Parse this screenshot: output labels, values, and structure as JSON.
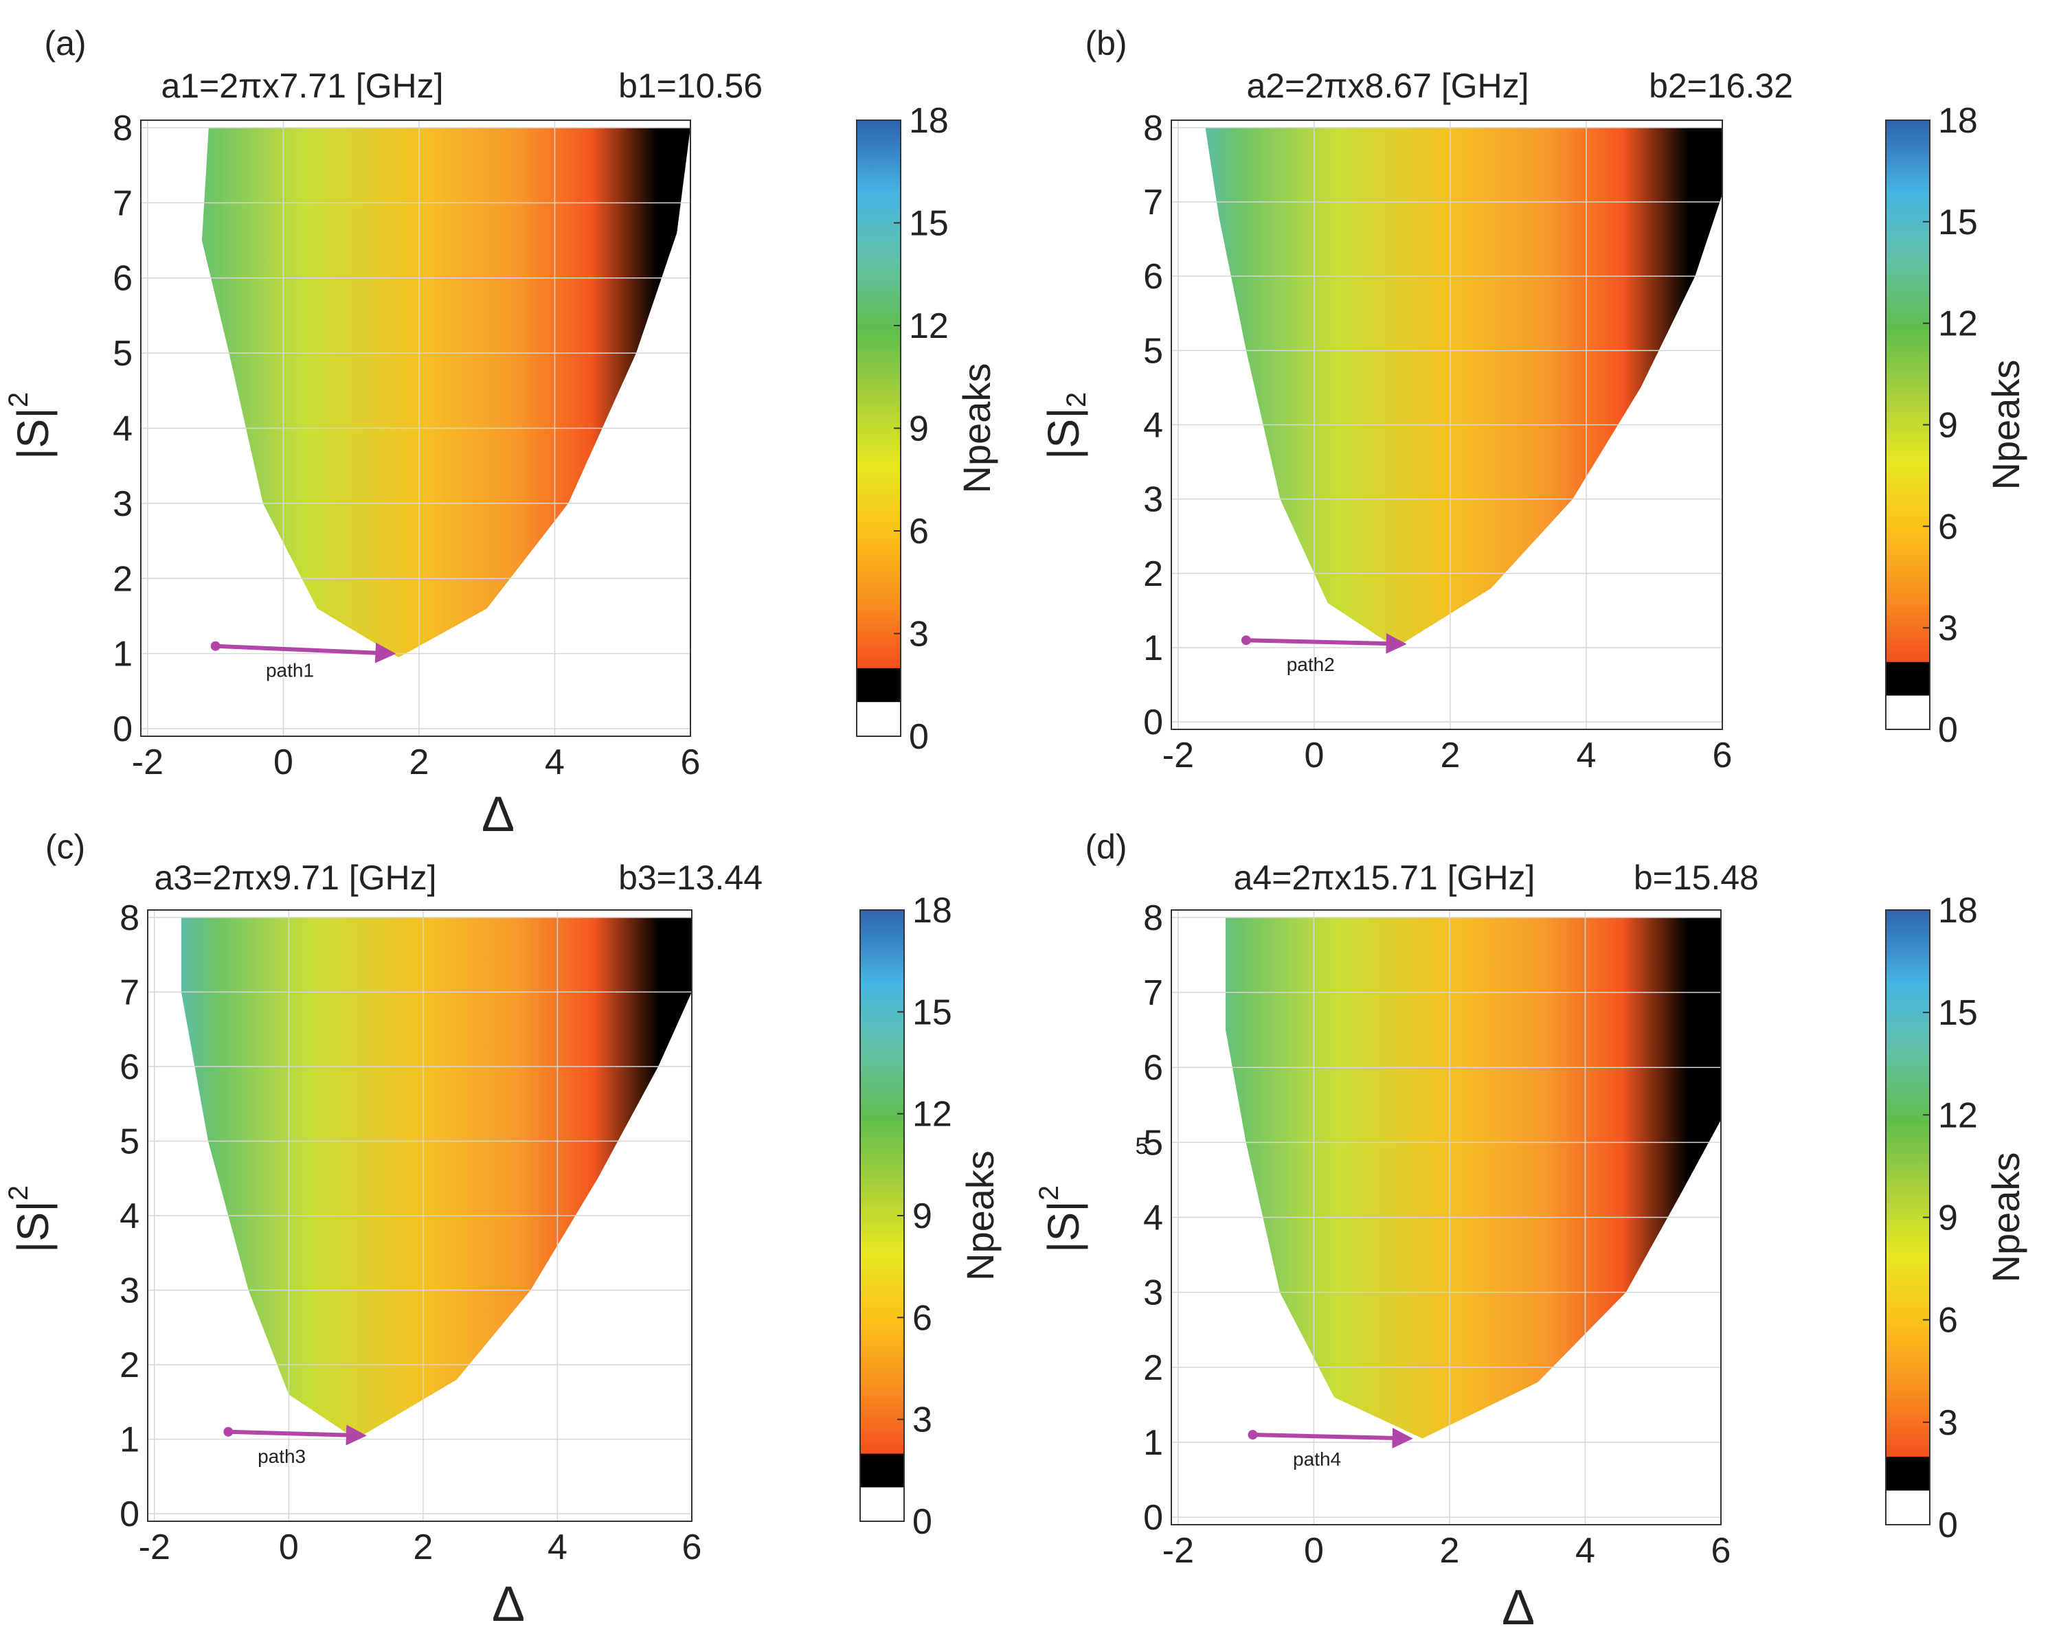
{
  "chart_data": [
    {
      "type": "heatmap",
      "panel_label": "(a)",
      "title_left": "a1=2πx7.71 [GHz]",
      "title_right": "b1=10.56",
      "xlabel": "Δ",
      "ylabel": "|S|",
      "ylabel_sup": "2",
      "ylabel_sub": "",
      "xlim": [
        -2.1,
        6.0
      ],
      "ylim": [
        -0.1,
        8.1
      ],
      "xticks": [
        -2,
        0,
        2,
        4,
        6
      ],
      "xtick_labels": [
        "-2",
        "0",
        "2",
        "4",
        "6"
      ],
      "yticks": [
        0,
        1,
        2,
        3,
        4,
        5,
        6,
        7,
        8
      ],
      "ytick_labels": [
        "0",
        "1",
        "2",
        "3",
        "4",
        "5",
        "6",
        "7",
        "8"
      ],
      "grid": true,
      "colorbar": {
        "label": "Npeaks",
        "range": [
          0,
          18
        ],
        "ticks": [
          0,
          3,
          6,
          9,
          12,
          15,
          18
        ],
        "tick_labels": [
          "0",
          "3",
          "6",
          "9",
          "12",
          "15",
          "18"
        ]
      },
      "region": {
        "vertex": [
          1.7,
          0.95
        ],
        "left_branch": [
          [
            1.7,
            0.95
          ],
          [
            0.5,
            1.6
          ],
          [
            -0.3,
            3.0
          ],
          [
            -0.8,
            5.0
          ],
          [
            -1.2,
            6.5
          ],
          [
            -1.1,
            8.0
          ]
        ],
        "right_branch": [
          [
            1.7,
            0.95
          ],
          [
            3.0,
            1.6
          ],
          [
            4.2,
            3.0
          ],
          [
            5.2,
            5.0
          ],
          [
            5.8,
            6.6
          ],
          [
            6.0,
            8.0
          ]
        ]
      },
      "path": {
        "label": "path1",
        "from": [
          -1.0,
          1.1
        ],
        "to": [
          1.6,
          1.0
        ]
      }
    },
    {
      "type": "heatmap",
      "panel_label": "(b)",
      "title_left": "a2=2πx8.67 [GHz]",
      "title_right": "b2=16.32",
      "xlabel": "",
      "ylabel": "|S|",
      "ylabel_sup": "",
      "ylabel_sub": "2",
      "xlim": [
        -2.1,
        6.0
      ],
      "ylim": [
        -0.1,
        8.1
      ],
      "xticks": [
        -2,
        0,
        2,
        4,
        6
      ],
      "xtick_labels": [
        "-2",
        "0",
        "2",
        "4",
        "6"
      ],
      "yticks": [
        0,
        1,
        2,
        3,
        4,
        5,
        6,
        7,
        8
      ],
      "ytick_labels": [
        "0",
        "1",
        "2",
        "3",
        "4",
        "5",
        "6",
        "7",
        "8"
      ],
      "grid": true,
      "colorbar": {
        "label": "Npeaks",
        "range": [
          0,
          18
        ],
        "ticks": [
          0,
          3,
          6,
          9,
          12,
          15,
          18
        ],
        "tick_labels": [
          "0",
          "3",
          "6",
          "9",
          "12",
          "15",
          "18"
        ]
      },
      "region": {
        "vertex": [
          1.2,
          1.0
        ],
        "left_branch": [
          [
            1.2,
            1.0
          ],
          [
            0.2,
            1.6
          ],
          [
            -0.5,
            3.0
          ],
          [
            -1.0,
            5.0
          ],
          [
            -1.4,
            6.8
          ],
          [
            -1.6,
            8.0
          ]
        ],
        "right_branch": [
          [
            1.2,
            1.0
          ],
          [
            2.6,
            1.8
          ],
          [
            3.8,
            3.0
          ],
          [
            4.8,
            4.5
          ],
          [
            5.6,
            6.0
          ],
          [
            6.0,
            7.1
          ],
          [
            6.0,
            8.0
          ]
        ]
      },
      "path": {
        "label": "path2",
        "from": [
          -1.0,
          1.1
        ],
        "to": [
          1.3,
          1.05
        ]
      }
    },
    {
      "type": "heatmap",
      "panel_label": "(c)",
      "title_left": "a3=2πx9.71 [GHz]",
      "title_right": "b3=13.44",
      "xlabel": "Δ",
      "ylabel": "|S|",
      "ylabel_sup": "2",
      "ylabel_sub": "",
      "xlim": [
        -2.1,
        6.0
      ],
      "ylim": [
        -0.1,
        8.1
      ],
      "xticks": [
        -2,
        0,
        2,
        4,
        6
      ],
      "xtick_labels": [
        "-2",
        "0",
        "2",
        "4",
        "6"
      ],
      "yticks": [
        0,
        1,
        2,
        3,
        4,
        5,
        6,
        7,
        8
      ],
      "ytick_labels": [
        "0",
        "1",
        "2",
        "3",
        "4",
        "5",
        "6",
        "7",
        "8"
      ],
      "grid": true,
      "colorbar": {
        "label": "Npeaks",
        "range": [
          0,
          18
        ],
        "ticks": [
          0,
          3,
          6,
          9,
          12,
          15,
          18
        ],
        "tick_labels": [
          "0",
          "3",
          "6",
          "9",
          "12",
          "15",
          "18"
        ]
      },
      "region": {
        "vertex": [
          1.0,
          1.0
        ],
        "left_branch": [
          [
            1.0,
            1.0
          ],
          [
            0.0,
            1.6
          ],
          [
            -0.6,
            3.0
          ],
          [
            -1.2,
            5.0
          ],
          [
            -1.6,
            7.0
          ],
          [
            -1.6,
            8.0
          ]
        ],
        "right_branch": [
          [
            1.0,
            1.0
          ],
          [
            2.5,
            1.8
          ],
          [
            3.6,
            3.0
          ],
          [
            4.6,
            4.5
          ],
          [
            5.5,
            6.0
          ],
          [
            6.0,
            7.0
          ],
          [
            6.0,
            8.0
          ]
        ]
      },
      "path": {
        "label": "path3",
        "from": [
          -0.9,
          1.1
        ],
        "to": [
          1.1,
          1.05
        ]
      }
    },
    {
      "type": "heatmap",
      "panel_label": "(d)",
      "title_left": "a4=2πx15.71 [GHz]",
      "title_right": "b=15.48",
      "xlabel": "Δ",
      "ylabel": "|S|",
      "ylabel_sup": "2",
      "ylabel_sub": "",
      "xlim": [
        -2.1,
        6.0
      ],
      "ylim": [
        -0.1,
        8.1
      ],
      "xticks": [
        -2,
        0,
        2,
        4,
        6
      ],
      "xtick_labels": [
        "-2",
        "0",
        "2",
        "4",
        "6"
      ],
      "yticks": [
        0,
        1,
        2,
        3,
        4,
        5,
        6,
        7,
        8
      ],
      "ytick_labels": [
        "0",
        "1",
        "2",
        "3",
        "4",
        "5",
        "6",
        "7",
        "8"
      ],
      "grid": true,
      "colorbar": {
        "label": "Npeaks",
        "range": [
          0,
          18
        ],
        "ticks": [
          0,
          3,
          6,
          9,
          12,
          15,
          18
        ],
        "tick_labels": [
          "0",
          "3",
          "6",
          "9",
          "12",
          "15",
          "18"
        ]
      },
      "region": {
        "vertex": [
          1.6,
          1.05
        ],
        "left_branch": [
          [
            1.6,
            1.05
          ],
          [
            0.3,
            1.6
          ],
          [
            -0.5,
            3.0
          ],
          [
            -1.0,
            5.0
          ],
          [
            -1.3,
            6.5
          ],
          [
            -1.3,
            8.0
          ]
        ],
        "right_branch": [
          [
            1.6,
            1.05
          ],
          [
            3.3,
            1.8
          ],
          [
            4.6,
            3.0
          ],
          [
            5.4,
            4.3
          ],
          [
            6.0,
            5.3
          ],
          [
            6.0,
            8.0
          ]
        ]
      },
      "path": {
        "label": "path4",
        "from": [
          -0.9,
          1.1
        ],
        "to": [
          1.4,
          1.05
        ]
      }
    }
  ],
  "stray_label": {
    "text": "5"
  }
}
